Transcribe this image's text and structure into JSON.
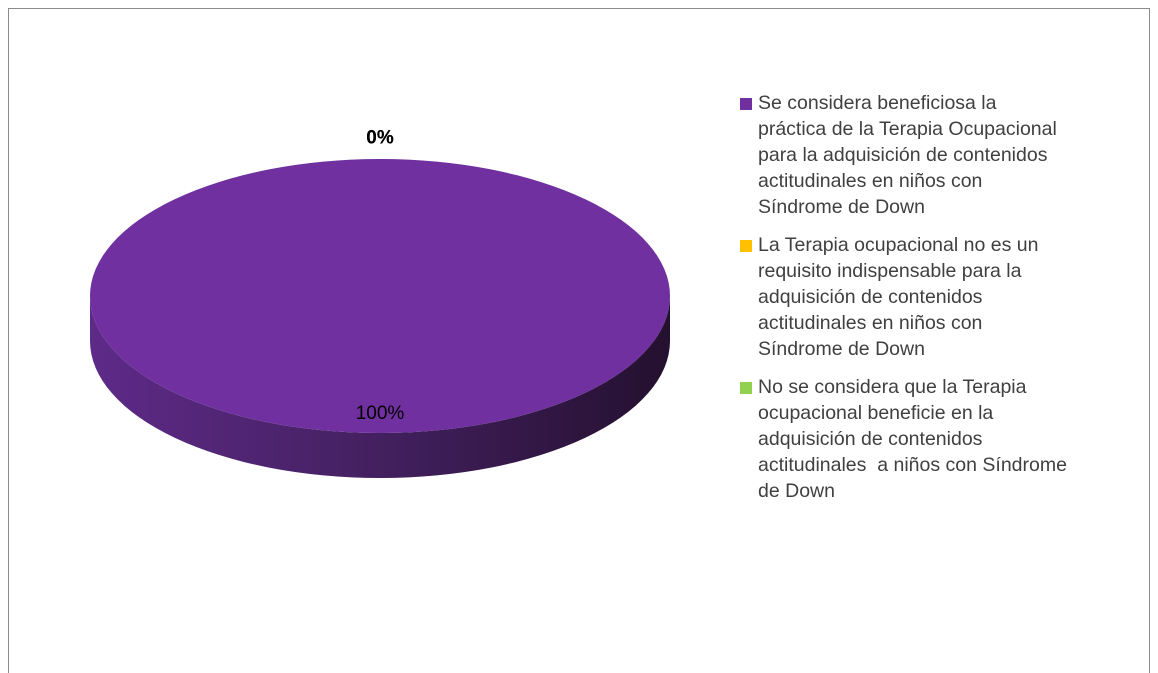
{
  "chart_data": {
    "type": "pie",
    "categories": [
      "Se considera beneficiosa la práctica de la Terapia Ocupacional para la adquisición de contenidos actitudinales en niños con Síndrome de Down",
      "La Terapia ocupacional no es un requisito indispensable para la adquisición de contenidos actitudinales en niños con Síndrome de Down",
      "No se considera que la Terapia ocupacional beneficie en la adquisición de contenidos actitudinales  a niños con Síndrome de Down"
    ],
    "values": [
      100,
      0,
      0
    ],
    "value_labels": [
      "100%",
      "0%",
      "0%"
    ],
    "colors": [
      "#7030a0",
      "#ffc000",
      "#92d050"
    ],
    "legend": "right"
  }
}
